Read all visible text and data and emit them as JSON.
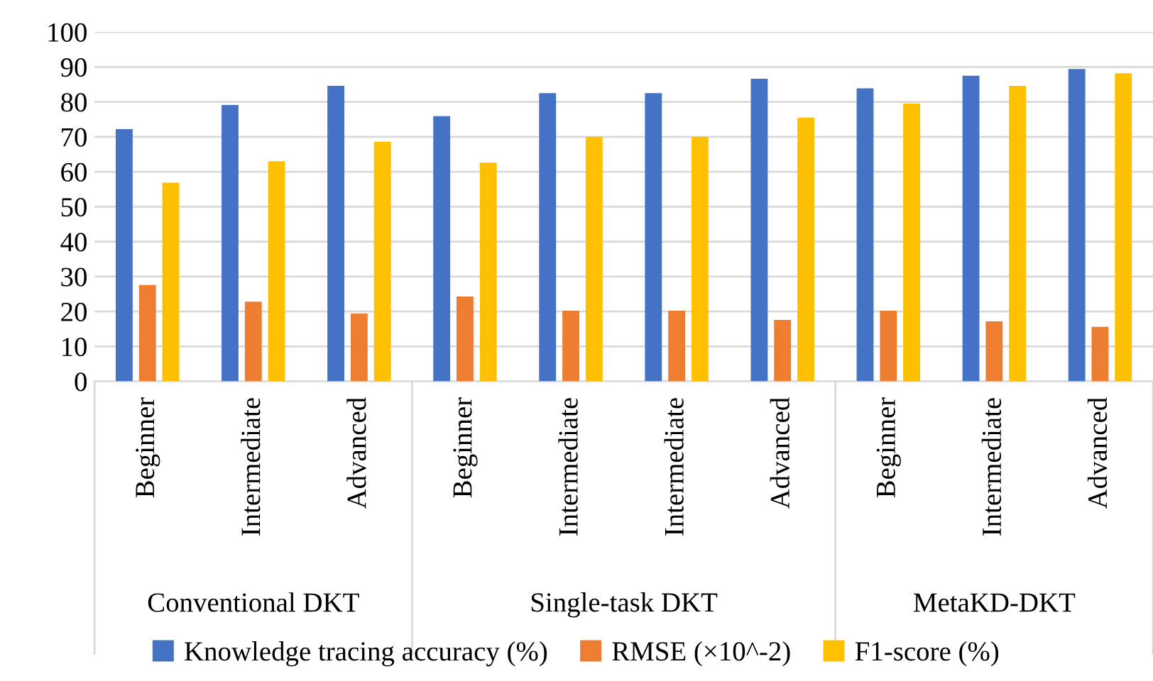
{
  "chart_data": {
    "type": "bar",
    "categories": [
      "Beginner",
      "Intermediate",
      "Advanced",
      "Beginner",
      "Intermediate",
      "Intermediate",
      "Advanced",
      "Beginner",
      "Intermediate",
      "Advanced"
    ],
    "series": [
      {
        "name": "Knowledge tracing accuracy (%)",
        "color": "#4472c4",
        "values": [
          72.2,
          79.1,
          84.6,
          75.9,
          82.5,
          82.5,
          86.6,
          83.9,
          87.5,
          89.4
        ]
      },
      {
        "name": "RMSE (×10^-2)",
        "color": "#ed7d31",
        "values": [
          27.6,
          22.8,
          19.4,
          24.3,
          20.2,
          20.2,
          17.6,
          20.2,
          17.2,
          15.6
        ]
      },
      {
        "name": "F1-score (%)",
        "color": "#ffc000",
        "values": [
          56.9,
          63,
          68.6,
          62.6,
          70,
          70,
          75.5,
          79.5,
          84.6,
          88.2
        ]
      }
    ],
    "annotations": [
      "Conventional DKT",
      "Single-task DKT",
      "MetaKD-DKT"
    ],
    "ylim": [
      0,
      100
    ],
    "yticks": [
      0,
      10,
      20,
      30,
      40,
      50,
      60,
      70,
      80,
      90,
      100
    ],
    "grid": "y",
    "legend": "bottom"
  }
}
